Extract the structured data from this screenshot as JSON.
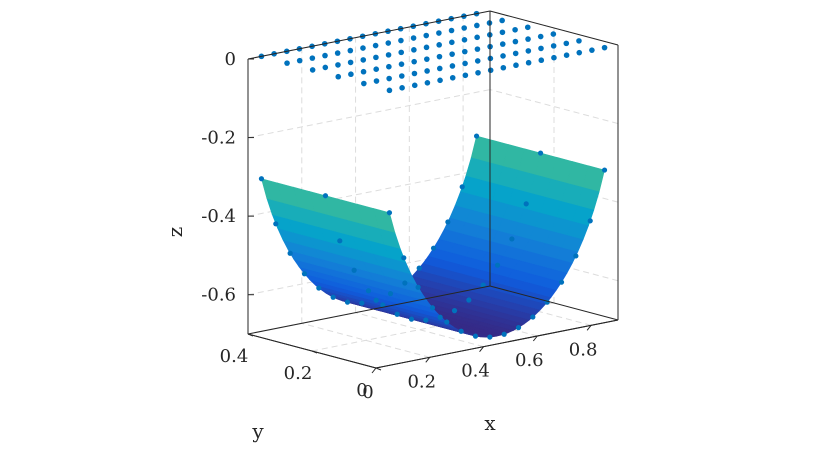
{
  "chart_data": {
    "type": "surface3d",
    "xlabel": "x",
    "ylabel": "y",
    "zlabel": "z",
    "xlim": [
      0,
      0.9
    ],
    "ylim": [
      0,
      0.4
    ],
    "zlim": [
      -0.7,
      0
    ],
    "x_ticks": [
      "0",
      "0.2",
      "0.4",
      "0.6",
      "0.8"
    ],
    "y_ticks": [
      "0",
      "0.2",
      "0.4"
    ],
    "z_ticks": [
      "0",
      "-0.2",
      "-0.4",
      "-0.6"
    ],
    "grid": true,
    "colormap": "parula",
    "surface": {
      "description_shape": "half-cylinder trough: z = -sqrt(r^2 - (x - xc)^2)",
      "center_x": 0.45,
      "radius": 0.45,
      "depth_scale": 0.68,
      "y_range": [
        0,
        0.4
      ],
      "x_range": [
        0.05,
        0.85
      ]
    },
    "points_series": {
      "marker": "filled circle",
      "color": "#0072BD",
      "plane_z": 0,
      "grid_x_count": 18,
      "grid_y_count": 6
    }
  },
  "colors": {
    "marker": "#0072BD",
    "axis": "#262626",
    "grid": "#dcdcdc",
    "colormap_stops": [
      "#352A87",
      "#0F5CDD",
      "#1481D6",
      "#06A4CA",
      "#2EB7A4",
      "#87BF77",
      "#D1BB59",
      "#FEC832",
      "#F9FB0E"
    ]
  }
}
